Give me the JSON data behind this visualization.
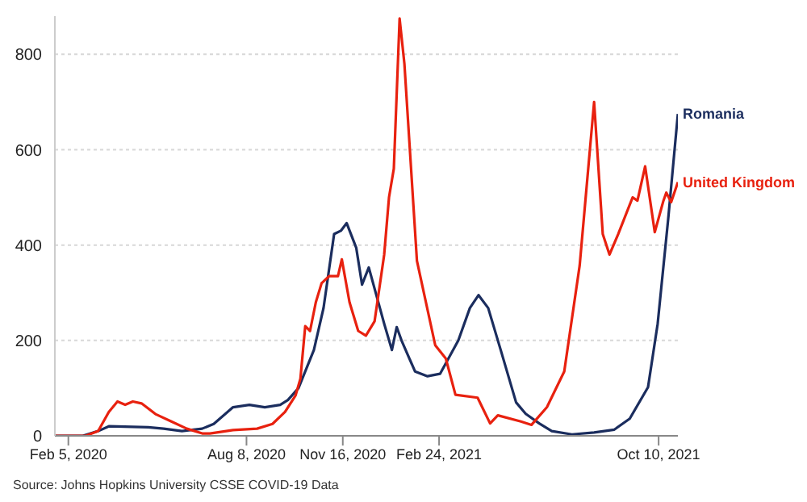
{
  "chart_data": {
    "type": "line",
    "annotations": [
      "Source: Johns Hopkins University CSSE COVID-19 Data"
    ],
    "xlim": [
      "2020-01-22",
      "2021-10-30"
    ],
    "xticks": [
      {
        "value": "2020-02-05",
        "label": "Feb 5, 2020"
      },
      {
        "value": "2020-08-08",
        "label": "Aug 8, 2020"
      },
      {
        "value": "2020-11-16",
        "label": "Nov 16, 2020"
      },
      {
        "value": "2021-02-24",
        "label": "Feb 24, 2021"
      },
      {
        "value": "2021-10-10",
        "label": "Oct 10, 2021"
      }
    ],
    "ylim": [
      0,
      880
    ],
    "yticks": [
      0,
      200,
      400,
      600,
      800
    ],
    "grid": "y",
    "marker": "none",
    "line_style": "solid",
    "series": [
      {
        "name": "Romania",
        "color": "#1b2d5e",
        "x": [
          "2020-01-22",
          "2020-02-20",
          "2020-03-07",
          "2020-03-18",
          "2020-04-28",
          "2020-05-14",
          "2020-06-02",
          "2020-06-23",
          "2020-07-05",
          "2020-07-25",
          "2020-08-11",
          "2020-08-27",
          "2020-09-12",
          "2020-09-20",
          "2020-10-01",
          "2020-10-17",
          "2020-10-27",
          "2020-11-07",
          "2020-11-14",
          "2020-11-20",
          "2020-11-30",
          "2020-12-06",
          "2020-12-13",
          "2020-12-29",
          "2021-01-06",
          "2021-01-11",
          "2021-01-16",
          "2021-01-30",
          "2021-02-12",
          "2021-02-25",
          "2021-03-16",
          "2021-03-28",
          "2021-04-06",
          "2021-04-16",
          "2021-04-29",
          "2021-05-15",
          "2021-05-25",
          "2021-06-08",
          "2021-06-21",
          "2021-07-12",
          "2021-08-04",
          "2021-08-25",
          "2021-09-10",
          "2021-09-29",
          "2021-10-09",
          "2021-10-20",
          "2021-10-30"
        ],
        "values": [
          0,
          0,
          10,
          20,
          18,
          15,
          10,
          15,
          25,
          60,
          65,
          60,
          65,
          75,
          100,
          180,
          268,
          423,
          430,
          446,
          394,
          317,
          353,
          235,
          180,
          228,
          200,
          135,
          125,
          130,
          200,
          268,
          295,
          268,
          180,
          70,
          46,
          26,
          10,
          3,
          7,
          13,
          36,
          102,
          235,
          456,
          675
        ]
      },
      {
        "name": "United Kingdom",
        "color": "#e8210f",
        "x": [
          "2020-01-22",
          "2020-02-23",
          "2020-03-07",
          "2020-03-18",
          "2020-03-27",
          "2020-04-04",
          "2020-04-12",
          "2020-04-21",
          "2020-05-06",
          "2020-05-22",
          "2020-06-07",
          "2020-06-23",
          "2020-07-01",
          "2020-07-25",
          "2020-08-19",
          "2020-09-04",
          "2020-09-17",
          "2020-09-28",
          "2020-10-03",
          "2020-10-08",
          "2020-10-13",
          "2020-10-19",
          "2020-10-25",
          "2020-11-02",
          "2020-11-11",
          "2020-11-15",
          "2020-11-23",
          "2020-12-02",
          "2020-12-10",
          "2020-12-19",
          "2020-12-29",
          "2021-01-03",
          "2021-01-08",
          "2021-01-14",
          "2021-01-19",
          "2021-02-01",
          "2021-02-20",
          "2021-03-03",
          "2021-03-13",
          "2021-04-05",
          "2021-04-18",
          "2021-04-26",
          "2021-05-20",
          "2021-05-31",
          "2021-06-16",
          "2021-07-04",
          "2021-07-20",
          "2021-08-04",
          "2021-08-13",
          "2021-08-20",
          "2021-08-29",
          "2021-09-13",
          "2021-09-18",
          "2021-09-26",
          "2021-10-06",
          "2021-10-15",
          "2021-10-18",
          "2021-10-23",
          "2021-10-30"
        ],
        "values": [
          0,
          0,
          10,
          50,
          72,
          65,
          72,
          68,
          45,
          30,
          15,
          5,
          5,
          12,
          15,
          25,
          50,
          85,
          120,
          230,
          220,
          280,
          320,
          335,
          335,
          370,
          280,
          220,
          210,
          240,
          380,
          500,
          560,
          875,
          780,
          367,
          190,
          162,
          86,
          80,
          26,
          43,
          30,
          23,
          60,
          135,
          357,
          700,
          423,
          380,
          423,
          500,
          493,
          565,
          427,
          493,
          510,
          490,
          532
        ]
      }
    ]
  }
}
